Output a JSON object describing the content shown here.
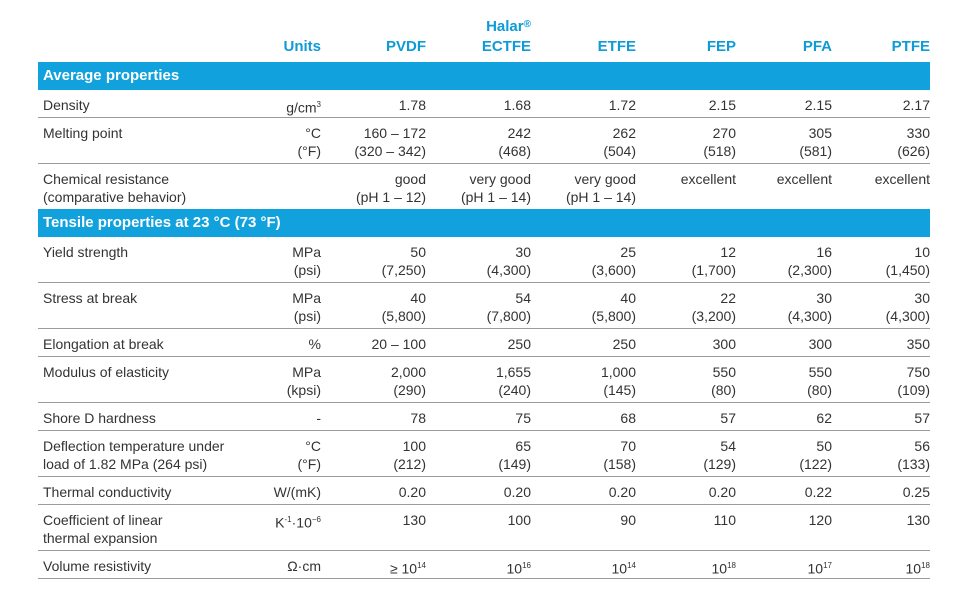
{
  "header": {
    "units": "Units",
    "pvdf": "PVDF",
    "halar_brand": "Halar",
    "halar_mark": "®",
    "ectfe": "ECTFE",
    "etfe": "ETFE",
    "fep": "FEP",
    "pfa": "PFA",
    "ptfe": "PTFE"
  },
  "sections": {
    "average": "Average properties",
    "tensile": "Tensile properties at 23 °C (73 °F)"
  },
  "rows": {
    "density": {
      "label": "Density",
      "unit_base": "g/cm",
      "unit_exp": "3",
      "values": [
        "1.78",
        "1.68",
        "1.72",
        "2.15",
        "2.15",
        "2.17"
      ]
    },
    "melting": {
      "label": "Melting point",
      "unit1": "°C",
      "unit2": "(°F)",
      "v1": [
        "160 – 172",
        "242",
        "262",
        "270",
        "305",
        "330"
      ],
      "v2": [
        "(320 – 342)",
        "(468)",
        "(504)",
        "(518)",
        "(581)",
        "(626)"
      ]
    },
    "chemical": {
      "label1": "Chemical resistance",
      "label2": "(comparative behavior)",
      "v1": [
        "good",
        "very good",
        "very good",
        "excellent",
        "excellent",
        "excellent"
      ],
      "v2": [
        "(pH 1 – 12)",
        "(pH 1 – 14)",
        "(pH 1 – 14)",
        "",
        "",
        ""
      ]
    },
    "yield": {
      "label": "Yield strength",
      "unit1": "MPa",
      "unit2": "(psi)",
      "v1": [
        "50",
        "30",
        "25",
        "12",
        "16",
        "10"
      ],
      "v2": [
        "(7,250)",
        "(4,300)",
        "(3,600)",
        "(1,700)",
        "(2,300)",
        "(1,450)"
      ]
    },
    "stress": {
      "label": "Stress at break",
      "unit1": "MPa",
      "unit2": "(psi)",
      "v1": [
        "40",
        "54",
        "40",
        "22",
        "30",
        "30"
      ],
      "v2": [
        "(5,800)",
        "(7,800)",
        "(5,800)",
        "(3,200)",
        "(4,300)",
        "(4,300)"
      ]
    },
    "elongation": {
      "label": "Elongation at break",
      "unit": "%",
      "values": [
        "20 – 100",
        "250",
        "250",
        "300",
        "300",
        "350"
      ]
    },
    "modulus": {
      "label": "Modulus of elasticity",
      "unit1": "MPa",
      "unit2": "(kpsi)",
      "v1": [
        "2,000",
        "1,655",
        "1,000",
        "550",
        "550",
        "750"
      ],
      "v2": [
        "(290)",
        "(240)",
        "(145)",
        "(80)",
        "(80)",
        "(109)"
      ]
    },
    "shore": {
      "label": "Shore D hardness",
      "unit": "-",
      "values": [
        "78",
        "75",
        "68",
        "57",
        "62",
        "57"
      ]
    },
    "deflection": {
      "label1": "Deflection temperature under",
      "label2": "load of 1.82 MPa (264 psi)",
      "unit1": "°C",
      "unit2": "(°F)",
      "v1": [
        "100",
        "65",
        "70",
        "54",
        "50",
        "56"
      ],
      "v2": [
        "(212)",
        "(149)",
        "(158)",
        "(129)",
        "(122)",
        "(133)"
      ]
    },
    "thermal": {
      "label": "Thermal conductivity",
      "unit": "W/(mK)",
      "values": [
        "0.20",
        "0.20",
        "0.20",
        "0.20",
        "0.22",
        "0.25"
      ]
    },
    "expansion": {
      "label1": "Coefficient of linear",
      "label2": "thermal expansion",
      "unit_k": "K",
      "unit_k_exp": "-1",
      "unit_mid": "·10",
      "unit_exp": "−6",
      "values": [
        "130",
        "100",
        "90",
        "110",
        "120",
        "130"
      ]
    },
    "resistivity": {
      "label": "Volume resistivity",
      "unit": "Ω·cm",
      "prefix": "≥ ",
      "base": "10",
      "exps": [
        "14",
        "16",
        "14",
        "18",
        "17",
        "18"
      ]
    }
  }
}
